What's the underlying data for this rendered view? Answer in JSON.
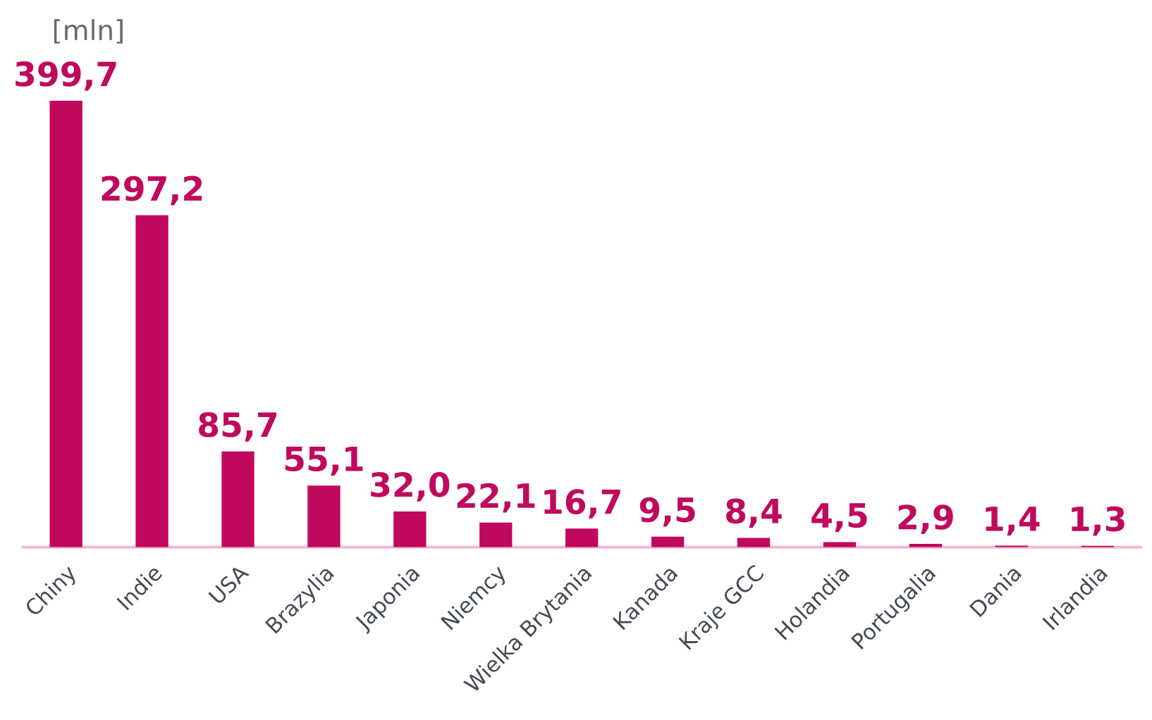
{
  "chart_data": {
    "type": "bar",
    "ylabel": "[mln]",
    "categories": [
      "Chiny",
      "Indie",
      "USA",
      "Brazylia",
      "Japonia",
      "Niemcy",
      "Wielka Brytania",
      "Kanada",
      "Kraje GCC",
      "Holandia",
      "Portugalia",
      "Dania",
      "Irlandia"
    ],
    "values": [
      399.7,
      297.2,
      85.7,
      55.1,
      32.0,
      22.1,
      16.7,
      9.5,
      8.4,
      4.5,
      2.9,
      1.4,
      1.3
    ],
    "value_labels": [
      "399,7",
      "297,2",
      "85,7",
      "55,1",
      "32,0",
      "22,1",
      "16,7",
      "9,5",
      "8,4",
      "4,5",
      "2,9",
      "1,4",
      "1,3"
    ],
    "color": "#c0095d",
    "grid": false,
    "legend": false
  }
}
